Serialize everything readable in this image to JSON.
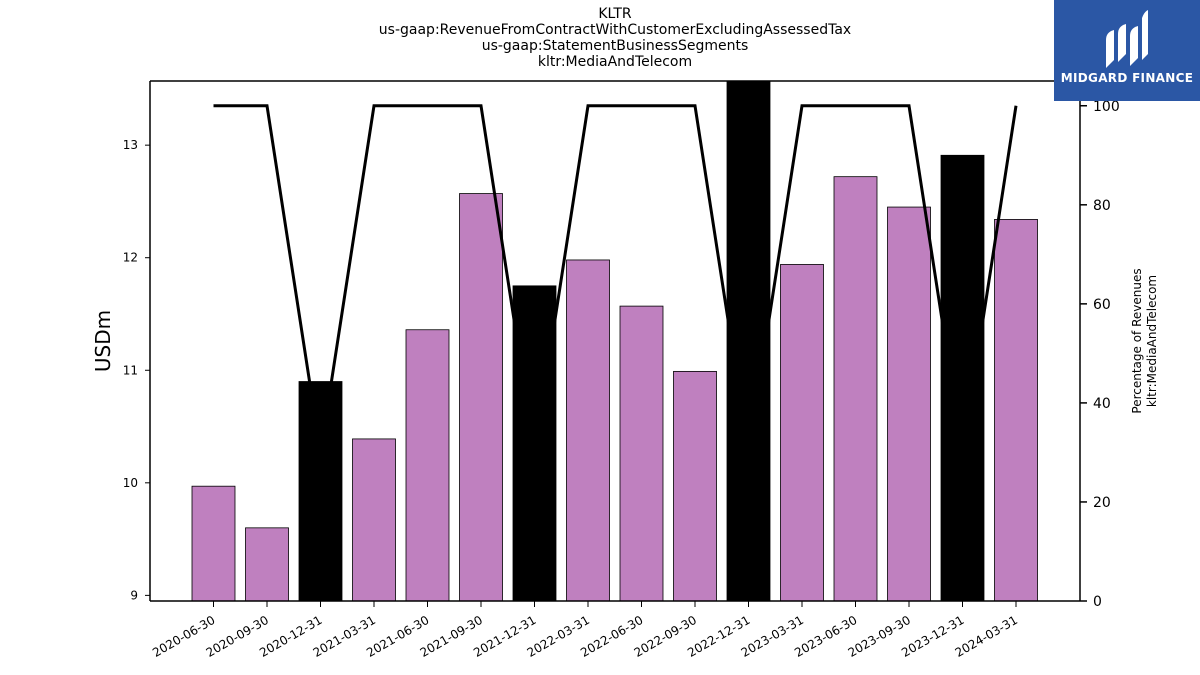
{
  "title_lines": [
    "KLTR",
    "us-gaap:RevenueFromContractWithCustomerExcludingAssessedTax",
    "us-gaap:StatementBusinessSegments",
    "kltr:MediaAndTelecom"
  ],
  "logo": {
    "text": "MIDGARD FINANCE",
    "background": "#2b57a5"
  },
  "chart_data": {
    "type": "bar",
    "categories": [
      "2020-06-30",
      "2020-09-30",
      "2020-12-31",
      "2021-03-31",
      "2021-06-30",
      "2021-09-30",
      "2021-12-31",
      "2022-03-31",
      "2022-06-30",
      "2022-09-30",
      "2022-12-31",
      "2023-03-31",
      "2023-06-30",
      "2023-09-30",
      "2023-12-31",
      "2024-03-31"
    ],
    "series": [
      {
        "values": [
          9.97,
          9.6,
          10.9,
          10.39,
          11.36,
          12.57,
          11.75,
          11.98,
          11.57,
          10.99,
          13.6,
          11.94,
          12.72,
          12.45,
          12.91,
          12.34
        ],
        "axis": "left",
        "bar_colors": [
          "#bf80bf",
          "#bf80bf",
          "#000000",
          "#bf80bf",
          "#bf80bf",
          "#bf80bf",
          "#000000",
          "#bf80bf",
          "#bf80bf",
          "#bf80bf",
          "#000000",
          "#bf80bf",
          "#bf80bf",
          "#bf80bf",
          "#000000",
          "#bf80bf"
        ]
      },
      {
        "type": "line",
        "axis": "right",
        "values": [
          100,
          100,
          30,
          100,
          100,
          100,
          30,
          100,
          100,
          100,
          30,
          100,
          100,
          100,
          30,
          100
        ],
        "color": "#000000"
      }
    ],
    "ylabel": "USDm",
    "ylim": [
      8.95,
      13.57
    ],
    "yticks": [
      9,
      10,
      11,
      12,
      13
    ],
    "y2label_lines": [
      "Percentage of Revenues",
      "kltr:MediaAndTelecom"
    ],
    "y2lim": [
      0,
      105
    ],
    "y2ticks": [
      0,
      20,
      40,
      60,
      80,
      100
    ],
    "grid": false
  }
}
